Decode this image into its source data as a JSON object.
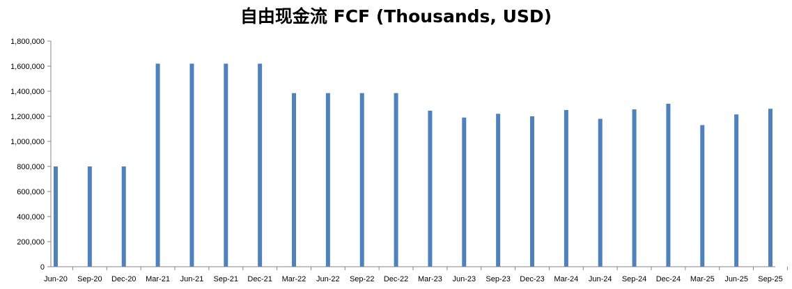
{
  "chart_data": {
    "type": "bar",
    "title": "自由现金流 FCF (Thousands, USD)",
    "xlabel": "",
    "ylabel": "",
    "ylim": [
      0,
      1800000
    ],
    "yticks": [
      "0",
      "200,000",
      "400,000",
      "600,000",
      "800,000",
      "1,000,000",
      "1,200,000",
      "1,400,000",
      "1,600,000",
      "1,800,000"
    ],
    "ytick_values": [
      0,
      200000,
      400000,
      600000,
      800000,
      1000000,
      1200000,
      1400000,
      1600000,
      1800000
    ],
    "categories": [
      "Jun-20",
      "Sep-20",
      "Dec-20",
      "Mar-21",
      "Jun-21",
      "Sep-21",
      "Dec-21",
      "Mar-22",
      "Jun-22",
      "Sep-22",
      "Dec-22",
      "Mar-23",
      "Jun-23",
      "Sep-23",
      "Dec-23",
      "Mar-24",
      "Jun-24",
      "Sep-24",
      "Dec-24",
      "Mar-25",
      "Jun-25",
      "Sep-25"
    ],
    "values": [
      800000,
      800000,
      800000,
      1620000,
      1620000,
      1620000,
      1620000,
      1385000,
      1385000,
      1385000,
      1385000,
      1245000,
      1190000,
      1220000,
      1200000,
      1250000,
      1180000,
      1255000,
      1300000,
      1130000,
      1215000,
      1260000
    ],
    "bar_color": "#4f81bd",
    "grid": false
  }
}
